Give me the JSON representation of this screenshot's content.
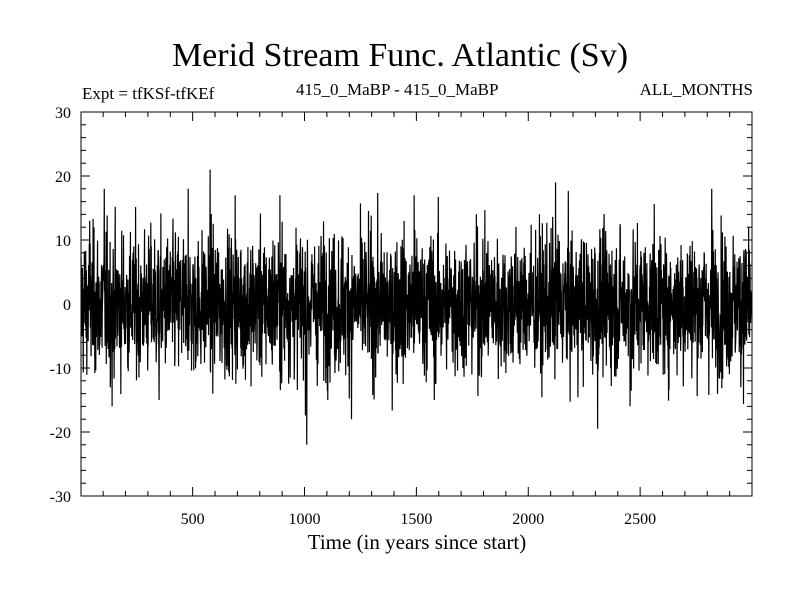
{
  "chart_data": {
    "type": "line",
    "title": "Merid Stream Func. Atlantic (Sv)",
    "subtitle_left": "Expt = tfKSf-tfKEf",
    "subtitle_center": "415_0_MaBP - 415_0_MaBP",
    "subtitle_right": "ALL_MONTHS",
    "xlabel": "Time (in years since start)",
    "ylabel": "",
    "xlim": [
      1,
      3000
    ],
    "ylim": [
      -30,
      30
    ],
    "xticks": [
      500,
      1000,
      1500,
      2000,
      2500
    ],
    "yticks": [
      -30,
      -20,
      -10,
      0,
      10,
      20,
      30
    ],
    "grid": false,
    "series": [
      {
        "color": "#000000",
        "n_points": 3000,
        "std": 5.5,
        "spikes": [
          {
            "x": 40,
            "y": 13
          },
          {
            "x": 105,
            "y": 18
          },
          {
            "x": 140,
            "y": -16
          },
          {
            "x": 350,
            "y": -15
          },
          {
            "x": 480,
            "y": 18
          },
          {
            "x": 578,
            "y": 21
          },
          {
            "x": 690,
            "y": 17
          },
          {
            "x": 890,
            "y": 17
          },
          {
            "x": 1010,
            "y": -22
          },
          {
            "x": 1210,
            "y": -18
          },
          {
            "x": 1490,
            "y": 17
          },
          {
            "x": 1580,
            "y": -15
          },
          {
            "x": 2122,
            "y": 19
          },
          {
            "x": 2310,
            "y": -19.5
          },
          {
            "x": 2455,
            "y": -16
          },
          {
            "x": 2820,
            "y": 18
          },
          {
            "x": 2950,
            "y": -13
          }
        ]
      }
    ]
  }
}
